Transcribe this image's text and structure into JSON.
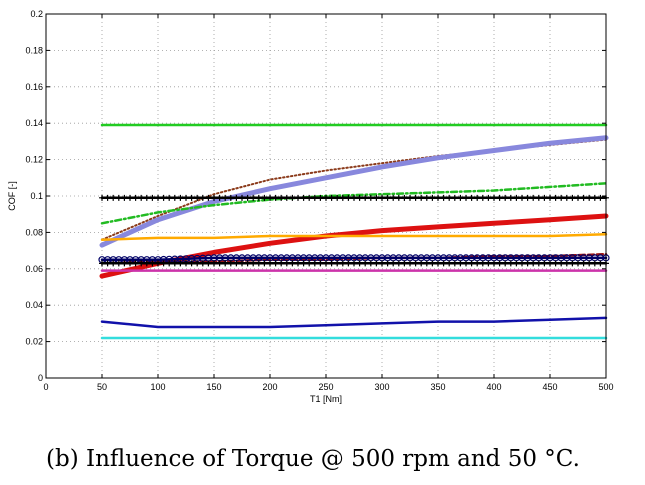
{
  "caption": "(b) Influence of Torque @ 500 rpm and 50 °C.",
  "chart_data": {
    "type": "line",
    "title": "",
    "xlabel": "T1 [Nm]",
    "ylabel": "COF [-]",
    "xlim": [
      0,
      500
    ],
    "ylim": [
      0,
      0.2
    ],
    "grid": true,
    "x": [
      50,
      100,
      150,
      200,
      250,
      300,
      350,
      400,
      450,
      500
    ],
    "xticks": [
      "0",
      "50",
      "100",
      "150",
      "200",
      "250",
      "300",
      "350",
      "400",
      "450",
      "500"
    ],
    "yticks": [
      "0",
      "0.02",
      "0.04",
      "0.06",
      "0.08",
      "0.1",
      "0.12",
      "0.14",
      "0.16",
      "0.18",
      "0.2"
    ],
    "series": [
      {
        "name": "green-solid",
        "color": "#22cc22",
        "style": "solid",
        "values": [
          0.139,
          0.139,
          0.139,
          0.139,
          0.139,
          0.139,
          0.139,
          0.139,
          0.139,
          0.139
        ]
      },
      {
        "name": "brown-dotted",
        "color": "#8b3a1a",
        "style": "dotted",
        "values": [
          0.076,
          0.089,
          0.101,
          0.109,
          0.114,
          0.118,
          0.122,
          0.125,
          0.128,
          0.131
        ]
      },
      {
        "name": "purple-star",
        "color": "#8888dd",
        "style": "thick",
        "values": [
          0.073,
          0.087,
          0.097,
          0.104,
          0.11,
          0.116,
          0.121,
          0.125,
          0.129,
          0.132
        ]
      },
      {
        "name": "green-dashdot",
        "color": "#22bb22",
        "style": "dashdot",
        "values": [
          0.085,
          0.091,
          0.095,
          0.098,
          0.1,
          0.101,
          0.102,
          0.103,
          0.105,
          0.107
        ]
      },
      {
        "name": "black-plus",
        "color": "#000000",
        "style": "plus",
        "values": [
          0.099,
          0.099,
          0.099,
          0.099,
          0.099,
          0.099,
          0.099,
          0.099,
          0.099,
          0.099
        ]
      },
      {
        "name": "red-thick",
        "color": "#dd1111",
        "style": "thick",
        "values": [
          0.056,
          0.063,
          0.069,
          0.074,
          0.078,
          0.081,
          0.083,
          0.085,
          0.087,
          0.089
        ]
      },
      {
        "name": "orange-solid",
        "color": "#ffaa00",
        "style": "solid",
        "values": [
          0.076,
          0.077,
          0.077,
          0.078,
          0.078,
          0.078,
          0.078,
          0.078,
          0.078,
          0.079
        ]
      },
      {
        "name": "darkred-dashed",
        "color": "#991111",
        "style": "dashed",
        "values": [
          0.063,
          0.064,
          0.064,
          0.065,
          0.065,
          0.066,
          0.066,
          0.067,
          0.067,
          0.068
        ]
      },
      {
        "name": "navy-circle",
        "color": "#000066",
        "style": "circle",
        "values": [
          0.065,
          0.065,
          0.066,
          0.066,
          0.066,
          0.066,
          0.066,
          0.066,
          0.066,
          0.066
        ]
      },
      {
        "name": "black-plus-low",
        "color": "#000000",
        "style": "plus",
        "values": [
          0.063,
          0.063,
          0.063,
          0.063,
          0.063,
          0.063,
          0.063,
          0.063,
          0.063,
          0.063
        ]
      },
      {
        "name": "magenta-solid",
        "color": "#cc33aa",
        "style": "solid",
        "values": [
          0.059,
          0.059,
          0.059,
          0.059,
          0.059,
          0.059,
          0.059,
          0.059,
          0.059,
          0.059
        ]
      },
      {
        "name": "blue-solid",
        "color": "#1111aa",
        "style": "solid",
        "values": [
          0.031,
          0.028,
          0.028,
          0.028,
          0.029,
          0.03,
          0.031,
          0.031,
          0.032,
          0.033
        ]
      },
      {
        "name": "cyan-solid",
        "color": "#33dddd",
        "style": "solid",
        "values": [
          0.022,
          0.022,
          0.022,
          0.022,
          0.022,
          0.022,
          0.022,
          0.022,
          0.022,
          0.022
        ]
      }
    ]
  }
}
